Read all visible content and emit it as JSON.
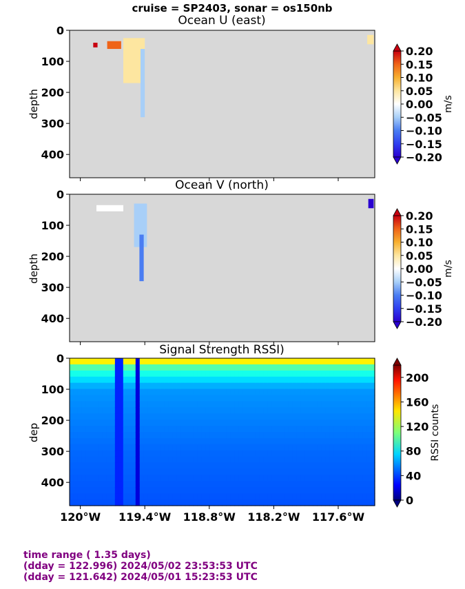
{
  "suptitle": "cruise = SP2403,  sonar = os150nb",
  "panels": [
    {
      "title": "Ocean U (east)",
      "ylabel": "depth",
      "cb_unit": "m/s",
      "cb_ticks": [
        "0.20",
        "0.15",
        "0.10",
        "0.05",
        "0.00",
        "−0.05",
        "−0.10",
        "−0.15",
        "−0.20"
      ]
    },
    {
      "title": "Ocean V (north)",
      "ylabel": "depth",
      "cb_unit": "m/s",
      "cb_ticks": [
        "0.20",
        "0.15",
        "0.10",
        "0.05",
        "0.00",
        "−0.05",
        "−0.10",
        "−0.15",
        "−0.20"
      ]
    },
    {
      "title": "Signal Strength RSSI)",
      "ylabel": "dep",
      "cb_unit": "RSSI counts",
      "cb_ticks": [
        "200",
        "160",
        "120",
        "80",
        "40",
        "0"
      ]
    }
  ],
  "yticks": [
    "0",
    "100",
    "200",
    "300",
    "400"
  ],
  "xticks": [
    "120°W",
    "119.4°W",
    "118.8°W",
    "118.2°W",
    "117.6°W"
  ],
  "footer": {
    "line1": "time range ( 1.35 days)",
    "line2": "(dday = 122.996) 2024/05/02 23:53:53 UTC",
    "line3": "(dday = 121.642) 2024/05/01 15:23:53 UTC"
  },
  "colors": {
    "nodata": "#d8d8d8",
    "footer": "#800080"
  },
  "chart_data": [
    {
      "type": "heatmap",
      "title": "Ocean U (east)",
      "ylabel": "depth",
      "xlim": [
        -120.1,
        -117.26
      ],
      "ylim": [
        475,
        0
      ],
      "clim": [
        -0.2,
        0.2
      ],
      "colorbar_label": "m/s",
      "colormap": "blue-white-red (jet-like, diverging)",
      "nodata_color": "#d8d8d8",
      "nonempty_regions": [
        {
          "lon": [
            -119.88,
            -119.84
          ],
          "depth": [
            40,
            55
          ],
          "value": 0.2
        },
        {
          "lon": [
            -119.75,
            -119.62
          ],
          "depth": [
            35,
            60
          ],
          "value": 0.15
        },
        {
          "lon": [
            -119.6,
            -119.4
          ],
          "depth": [
            25,
            170
          ],
          "value": 0.05
        },
        {
          "lon": [
            -119.44,
            -119.4
          ],
          "depth": [
            60,
            280
          ],
          "value": -0.05
        },
        {
          "lon": [
            -117.33,
            -117.27
          ],
          "depth": [
            15,
            45
          ],
          "value": 0.05
        }
      ]
    },
    {
      "type": "heatmap",
      "title": "Ocean V (north)",
      "ylabel": "depth",
      "xlim": [
        -120.1,
        -117.26
      ],
      "ylim": [
        475,
        0
      ],
      "clim": [
        -0.2,
        0.2
      ],
      "colorbar_label": "m/s",
      "colormap": "blue-white-red (jet-like, diverging)",
      "nodata_color": "#d8d8d8",
      "nonempty_regions": [
        {
          "lon": [
            -119.85,
            -119.6
          ],
          "depth": [
            35,
            55
          ],
          "value": 0.0
        },
        {
          "lon": [
            -119.5,
            -119.38
          ],
          "depth": [
            30,
            170
          ],
          "value": -0.05
        },
        {
          "lon": [
            -119.45,
            -119.41
          ],
          "depth": [
            130,
            280
          ],
          "value": -0.1
        },
        {
          "lon": [
            -117.32,
            -117.27
          ],
          "depth": [
            15,
            45
          ],
          "value": -0.2
        }
      ]
    },
    {
      "type": "heatmap",
      "title": "Signal Strength RSSI)",
      "ylabel": "dep",
      "xlim": [
        -120.1,
        -117.26
      ],
      "ylim": [
        475,
        0
      ],
      "clim": [
        0,
        220
      ],
      "colorbar_label": "RSSI counts",
      "colormap": "jet",
      "depth_profile": [
        {
          "depth": 10,
          "rssi": 140
        },
        {
          "depth": 30,
          "rssi": 100
        },
        {
          "depth": 60,
          "rssi": 80
        },
        {
          "depth": 100,
          "rssi": 60
        },
        {
          "depth": 200,
          "rssi": 55
        },
        {
          "depth": 300,
          "rssi": 50
        },
        {
          "depth": 475,
          "rssi": 45
        }
      ],
      "features": [
        {
          "lon": [
            -119.5,
            -119.44
          ],
          "depth": [
            0,
            475
          ],
          "rssi": 20
        },
        {
          "lon": [
            -119.67,
            -119.62
          ],
          "depth": [
            0,
            475
          ],
          "rssi": 35
        }
      ]
    }
  ]
}
